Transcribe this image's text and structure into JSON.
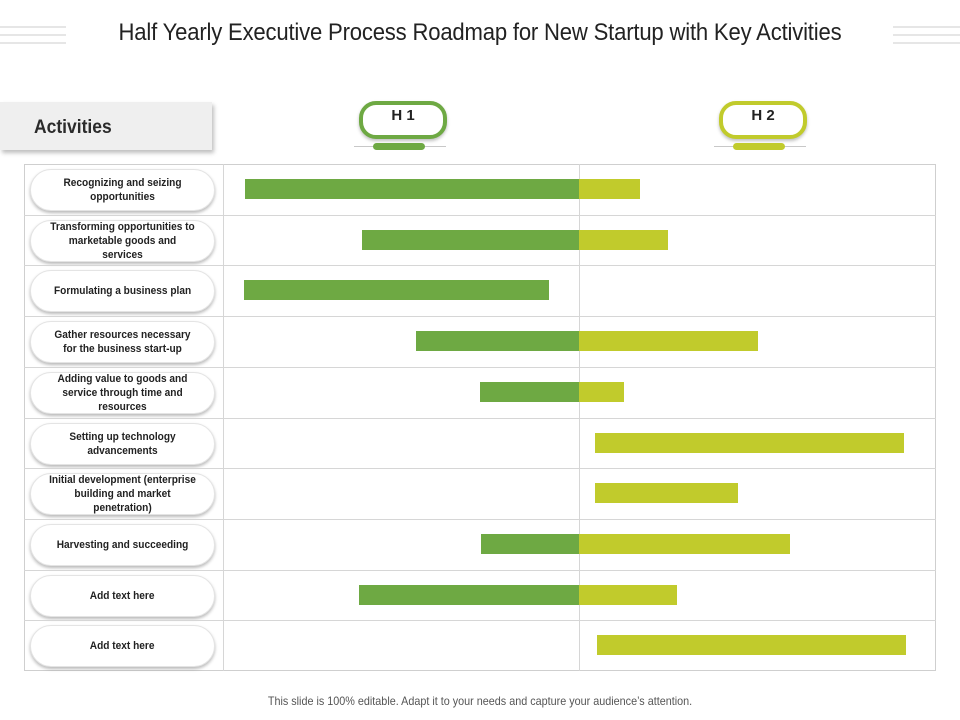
{
  "title": "Half Yearly Executive Process Roadmap for New Startup with Key Activities",
  "activities_header": "Activities",
  "periods": [
    {
      "label": "H 1",
      "color": "#6ea943"
    },
    {
      "label": "H 2",
      "color": "#c1cb2c"
    }
  ],
  "rows": [
    {
      "label": "Recognizing and seizing opportunities",
      "h1_start": 0.06,
      "h2_end": 0.17
    },
    {
      "label": "Transforming opportunities to marketable goods and services",
      "h1_start": 0.39,
      "h2_end": 0.25
    },
    {
      "label": "Formulating a business plan",
      "h1_start": 0.055,
      "h1_end": 0.915
    },
    {
      "label": "Gather resources necessary for the business start-up",
      "h1_start": 0.54,
      "h2_end": 0.5
    },
    {
      "label": "Adding value to goods and service through time and resources",
      "h1_start": 0.72,
      "h2_end": 0.125
    },
    {
      "label": "Setting up technology advancements",
      "h2_start": 0.045,
      "h2_end": 0.91
    },
    {
      "label": "Initial development (enterprise building and market penetration)",
      "h2_start": 0.045,
      "h2_end": 0.445
    },
    {
      "label": "Harvesting and succeeding",
      "h1_start": 0.725,
      "h2_end": 0.59
    },
    {
      "label": "Add text here",
      "h1_start": 0.38,
      "h2_end": 0.275
    },
    {
      "label": "Add text here",
      "h2_start": 0.05,
      "h2_end": 0.915
    }
  ],
  "footer": "This slide is 100% editable. Adapt it to your needs and capture your audience’s attention."
}
